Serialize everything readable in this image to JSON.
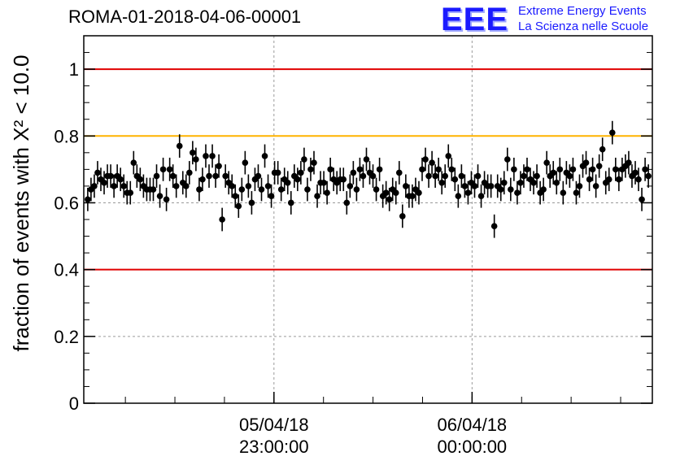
{
  "title": "ROMA-01-2018-04-06-00001",
  "logo": {
    "mark": "EEE",
    "line1": "Extreme Energy Events",
    "line2": "La Scienza nelle Scuole",
    "color": "#1a1aff"
  },
  "chart_data": {
    "type": "scatter",
    "title": "ROMA-01-2018-04-06-00001",
    "ylabel": "fraction of events with X² < 10.0",
    "xlabel": "",
    "ylim": [
      0,
      1.1
    ],
    "yticks": [
      0,
      0.2,
      0.4,
      0.6,
      0.8,
      1
    ],
    "ytick_labels": [
      "0",
      "0.2",
      "0.4",
      "0.6",
      "0.8",
      "1"
    ],
    "x_unit": "hours since start of run",
    "xlim": [
      0,
      2.87
    ],
    "xticks_labeled": [
      {
        "x": 0.96,
        "date": "05/04/18",
        "time": "23:00:00"
      },
      {
        "x": 1.96,
        "date": "06/04/18",
        "time": "00:00:00"
      }
    ],
    "grid": true,
    "reference_lines": [
      {
        "y": 1.0,
        "color": "#e00000"
      },
      {
        "y": 0.8,
        "color": "#ffb300"
      },
      {
        "y": 0.4,
        "color": "#e00000"
      }
    ],
    "error_bar": 0.035,
    "series": [
      {
        "values": [
          0.61,
          0.64,
          0.65,
          0.69,
          0.67,
          0.66,
          0.68,
          0.68,
          0.65,
          0.68,
          0.67,
          0.65,
          0.63,
          0.63,
          0.72,
          0.68,
          0.67,
          0.65,
          0.64,
          0.64,
          0.64,
          0.68,
          0.62,
          0.7,
          0.61,
          0.7,
          0.68,
          0.65,
          0.77,
          0.66,
          0.65,
          0.69,
          0.75,
          0.73,
          0.64,
          0.67,
          0.74,
          0.68,
          0.74,
          0.68,
          0.71,
          0.55,
          0.68,
          0.66,
          0.65,
          0.62,
          0.59,
          0.64,
          0.72,
          0.65,
          0.6,
          0.67,
          0.68,
          0.64,
          0.74,
          0.65,
          0.62,
          0.69,
          0.69,
          0.64,
          0.67,
          0.66,
          0.6,
          0.68,
          0.67,
          0.69,
          0.73,
          0.64,
          0.7,
          0.72,
          0.62,
          0.66,
          0.66,
          0.63,
          0.7,
          0.67,
          0.66,
          0.67,
          0.67,
          0.6,
          0.65,
          0.69,
          0.64,
          0.7,
          0.68,
          0.73,
          0.69,
          0.68,
          0.64,
          0.7,
          0.62,
          0.63,
          0.61,
          0.64,
          0.63,
          0.69,
          0.56,
          0.65,
          0.62,
          0.62,
          0.64,
          0.63,
          0.7,
          0.73,
          0.68,
          0.72,
          0.68,
          0.7,
          0.66,
          0.68,
          0.74,
          0.7,
          0.67,
          0.62,
          0.68,
          0.65,
          0.63,
          0.66,
          0.65,
          0.68,
          0.62,
          0.66,
          0.65,
          0.65,
          0.53,
          0.65,
          0.64,
          0.66,
          0.73,
          0.64,
          0.7,
          0.63,
          0.66,
          0.68,
          0.7,
          0.67,
          0.66,
          0.68,
          0.63,
          0.64,
          0.72,
          0.68,
          0.69,
          0.66,
          0.7,
          0.63,
          0.69,
          0.68,
          0.7,
          0.63,
          0.65,
          0.71,
          0.72,
          0.67,
          0.7,
          0.65,
          0.71,
          0.76,
          0.66,
          0.67,
          0.81,
          0.7,
          0.67,
          0.7,
          0.71,
          0.72,
          0.68,
          0.69,
          0.67,
          0.61,
          0.7,
          0.68
        ]
      }
    ]
  }
}
